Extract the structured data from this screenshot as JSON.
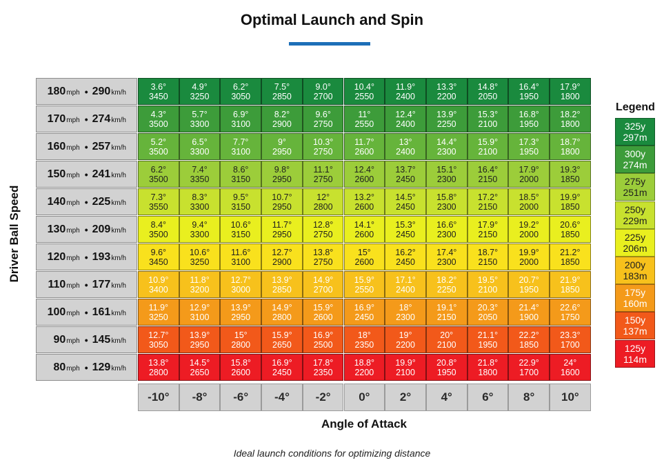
{
  "title": "Optimal Launch and Spin",
  "colors": {
    "accent_bar": "#1d6fb8",
    "header_bg": "#d2d2d2",
    "row_colors": [
      "#1a8a3e",
      "#3d9c3a",
      "#66b43b",
      "#9ccd3a",
      "#c8e12f",
      "#e9ef1f",
      "#f9e11d",
      "#f7c11c",
      "#f49a1a",
      "#f2591a",
      "#ed1c24"
    ]
  },
  "chart_data": {
    "type": "table",
    "title": "Optimal Launch and Spin",
    "ylabel": "Driver Ball Speed",
    "xlabel": "Angle of Attack",
    "caption": "Ideal launch conditions for optimizing distance",
    "columns": [
      "-10°",
      "-8°",
      "-6°",
      "-4°",
      "-2°",
      "0°",
      "2°",
      "4°",
      "6°",
      "8°",
      "10°"
    ],
    "unit_mph": "mph",
    "unit_kmh": "km/h",
    "rows": [
      {
        "mph": "180",
        "kmh": "290",
        "launch": [
          "3.6°",
          "4.9°",
          "6.2°",
          "7.5°",
          "9.0°",
          "10.4°",
          "11.9°",
          "13.3°",
          "14.8°",
          "16.4°",
          "17.9°"
        ],
        "spin": [
          "3450",
          "3250",
          "3050",
          "2850",
          "2700",
          "2550",
          "2400",
          "2200",
          "2050",
          "1950",
          "1800"
        ]
      },
      {
        "mph": "170",
        "kmh": "274",
        "launch": [
          "4.3°",
          "5.7°",
          "6.9°",
          "8.2°",
          "9.6°",
          "11°",
          "12.4°",
          "13.9°",
          "15.3°",
          "16.8°",
          "18.2°"
        ],
        "spin": [
          "3500",
          "3300",
          "3100",
          "2900",
          "2750",
          "2550",
          "2400",
          "2250",
          "2100",
          "1950",
          "1800"
        ]
      },
      {
        "mph": "160",
        "kmh": "257",
        "launch": [
          "5.2°",
          "6.5°",
          "7.7°",
          "9°",
          "10.3°",
          "11.7°",
          "13°",
          "14.4°",
          "15.9°",
          "17.3°",
          "18.7°"
        ],
        "spin": [
          "3500",
          "3300",
          "3100",
          "2950",
          "2750",
          "2600",
          "2400",
          "2300",
          "2100",
          "1950",
          "1800"
        ]
      },
      {
        "mph": "150",
        "kmh": "241",
        "launch": [
          "6.2°",
          "7.4°",
          "8.6°",
          "9.8°",
          "11.1°",
          "12.4°",
          "13.7°",
          "15.1°",
          "16.4°",
          "17.9°",
          "19.3°"
        ],
        "spin": [
          "3500",
          "3350",
          "3150",
          "2950",
          "2750",
          "2600",
          "2450",
          "2300",
          "2150",
          "2000",
          "1850"
        ]
      },
      {
        "mph": "140",
        "kmh": "225",
        "launch": [
          "7.3°",
          "8.3°",
          "9.5°",
          "10.7°",
          "12°",
          "13.2°",
          "14.5°",
          "15.8°",
          "17.2°",
          "18.5°",
          "19.9°"
        ],
        "spin": [
          "3550",
          "3300",
          "3150",
          "2950",
          "2800",
          "2600",
          "2450",
          "2300",
          "2150",
          "2000",
          "1850"
        ]
      },
      {
        "mph": "130",
        "kmh": "209",
        "launch": [
          "8.4°",
          "9.4°",
          "10.6°",
          "11.7°",
          "12.8°",
          "14.1°",
          "15.3°",
          "16.6°",
          "17.9°",
          "19.2°",
          "20.6°"
        ],
        "spin": [
          "3500",
          "3300",
          "3150",
          "2950",
          "2750",
          "2600",
          "2450",
          "2300",
          "2150",
          "2000",
          "1850"
        ]
      },
      {
        "mph": "120",
        "kmh": "193",
        "launch": [
          "9.6°",
          "10.6°",
          "11.6°",
          "12.7°",
          "13.8°",
          "15°",
          "16.2°",
          "17.4°",
          "18.7°",
          "19.9°",
          "21.2°"
        ],
        "spin": [
          "3450",
          "3250",
          "3100",
          "2900",
          "2750",
          "2600",
          "2450",
          "2300",
          "2150",
          "2000",
          "1850"
        ]
      },
      {
        "mph": "110",
        "kmh": "177",
        "launch": [
          "10.9°",
          "11.8°",
          "12.7°",
          "13.9°",
          "14.9°",
          "15.9°",
          "17.1°",
          "18.2°",
          "19.5°",
          "20.7°",
          "21.9°"
        ],
        "spin": [
          "3400",
          "3200",
          "3000",
          "2850",
          "2700",
          "2550",
          "2400",
          "2250",
          "2100",
          "1950",
          "1850"
        ]
      },
      {
        "mph": "100",
        "kmh": "161",
        "launch": [
          "11.9°",
          "12.9°",
          "13.9°",
          "14.9°",
          "15.9°",
          "16.9°",
          "18°",
          "19.1°",
          "20.3°",
          "21.4°",
          "22.6°"
        ],
        "spin": [
          "3250",
          "3100",
          "2950",
          "2800",
          "2600",
          "2450",
          "2300",
          "2150",
          "2050",
          "1900",
          "1750"
        ]
      },
      {
        "mph": "90",
        "kmh": "145",
        "launch": [
          "12.7°",
          "13.9°",
          "15°",
          "15.9°",
          "16.9°",
          "18°",
          "19°",
          "20°",
          "21.1°",
          "22.2°",
          "23.3°"
        ],
        "spin": [
          "3050",
          "2950",
          "2800",
          "2650",
          "2500",
          "2350",
          "2200",
          "2100",
          "1950",
          "1850",
          "1700"
        ]
      },
      {
        "mph": "80",
        "kmh": "129",
        "launch": [
          "13.8°",
          "14.5°",
          "15.8°",
          "16.9°",
          "17.8°",
          "18.8°",
          "19.9°",
          "20.8°",
          "21.8°",
          "22.9°",
          "24°"
        ],
        "spin": [
          "2800",
          "2650",
          "2600",
          "2450",
          "2350",
          "2200",
          "2100",
          "1950",
          "1800",
          "1700",
          "1600"
        ]
      }
    ],
    "legend_title": "Legend",
    "legend": [
      {
        "yards": "325y",
        "meters": "297m",
        "color": "#1a8a3e"
      },
      {
        "yards": "300y",
        "meters": "274m",
        "color": "#3d9c3a"
      },
      {
        "yards": "275y",
        "meters": "251m",
        "color": "#9ccd3a"
      },
      {
        "yards": "250y",
        "meters": "229m",
        "color": "#c8e12f"
      },
      {
        "yards": "225y",
        "meters": "206m",
        "color": "#e9ef1f"
      },
      {
        "yards": "200y",
        "meters": "183m",
        "color": "#f7c11c"
      },
      {
        "yards": "175y",
        "meters": "160m",
        "color": "#f49a1a"
      },
      {
        "yards": "150y",
        "meters": "137m",
        "color": "#f2591a"
      },
      {
        "yards": "125y",
        "meters": "114m",
        "color": "#ed1c24"
      }
    ]
  }
}
